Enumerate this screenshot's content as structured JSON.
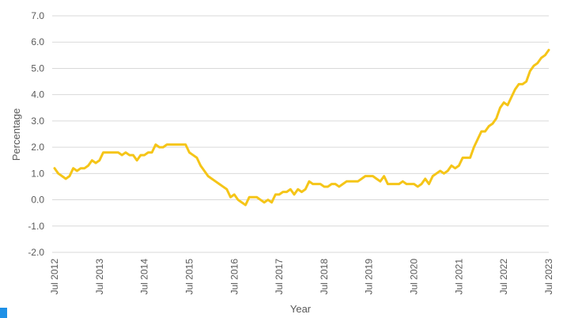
{
  "chart_data": {
    "type": "line",
    "title": "",
    "xlabel": "Year",
    "ylabel": "Percentage",
    "ylim": [
      -2.0,
      7.0
    ],
    "yticks": [
      "-2.0",
      "-1.0",
      "0.0",
      "1.0",
      "2.0",
      "3.0",
      "4.0",
      "5.0",
      "6.0",
      "7.0"
    ],
    "xticks": [
      "Jul 2012",
      "Jul 2013",
      "Jul 2014",
      "Jul 2015",
      "Jul 2016",
      "Jul 2017",
      "Jul 2018",
      "Jul 2019",
      "Jul 2020",
      "Jul 2021",
      "Jul 2022",
      "Jul 2023"
    ],
    "grid": true,
    "legend": "none",
    "line_color": "#f5c518",
    "series": [
      {
        "x_start": "Jul 2012",
        "x_end": "Jul 2023",
        "frequency": "monthly",
        "values": [
          1.2,
          1.0,
          0.9,
          0.8,
          0.9,
          1.2,
          1.1,
          1.2,
          1.2,
          1.3,
          1.5,
          1.4,
          1.5,
          1.8,
          1.8,
          1.8,
          1.8,
          1.8,
          1.7,
          1.8,
          1.7,
          1.7,
          1.5,
          1.7,
          1.7,
          1.8,
          1.8,
          2.1,
          2.0,
          2.0,
          2.1,
          2.1,
          2.1,
          2.1,
          2.1,
          2.1,
          1.8,
          1.7,
          1.6,
          1.3,
          1.1,
          0.9,
          0.8,
          0.7,
          0.6,
          0.5,
          0.4,
          0.1,
          0.2,
          0.0,
          -0.1,
          -0.2,
          0.1,
          0.1,
          0.1,
          0.0,
          -0.1,
          0.0,
          -0.1,
          0.2,
          0.2,
          0.3,
          0.3,
          0.4,
          0.2,
          0.4,
          0.3,
          0.4,
          0.7,
          0.6,
          0.6,
          0.6,
          0.5,
          0.5,
          0.6,
          0.6,
          0.5,
          0.6,
          0.7,
          0.7,
          0.7,
          0.7,
          0.8,
          0.9,
          0.9,
          0.9,
          0.8,
          0.7,
          0.9,
          0.6,
          0.6,
          0.6,
          0.6,
          0.7,
          0.6,
          0.6,
          0.6,
          0.5,
          0.6,
          0.8,
          0.6,
          0.9,
          1.0,
          1.1,
          1.0,
          1.1,
          1.3,
          1.2,
          1.3,
          1.6,
          1.6,
          1.6,
          2.0,
          2.3,
          2.6,
          2.6,
          2.8,
          2.9,
          3.1,
          3.5,
          3.7,
          3.6,
          3.9,
          4.2,
          4.4,
          4.4,
          4.5,
          4.9,
          5.1,
          5.2,
          5.4,
          5.5,
          5.7
        ]
      }
    ]
  }
}
